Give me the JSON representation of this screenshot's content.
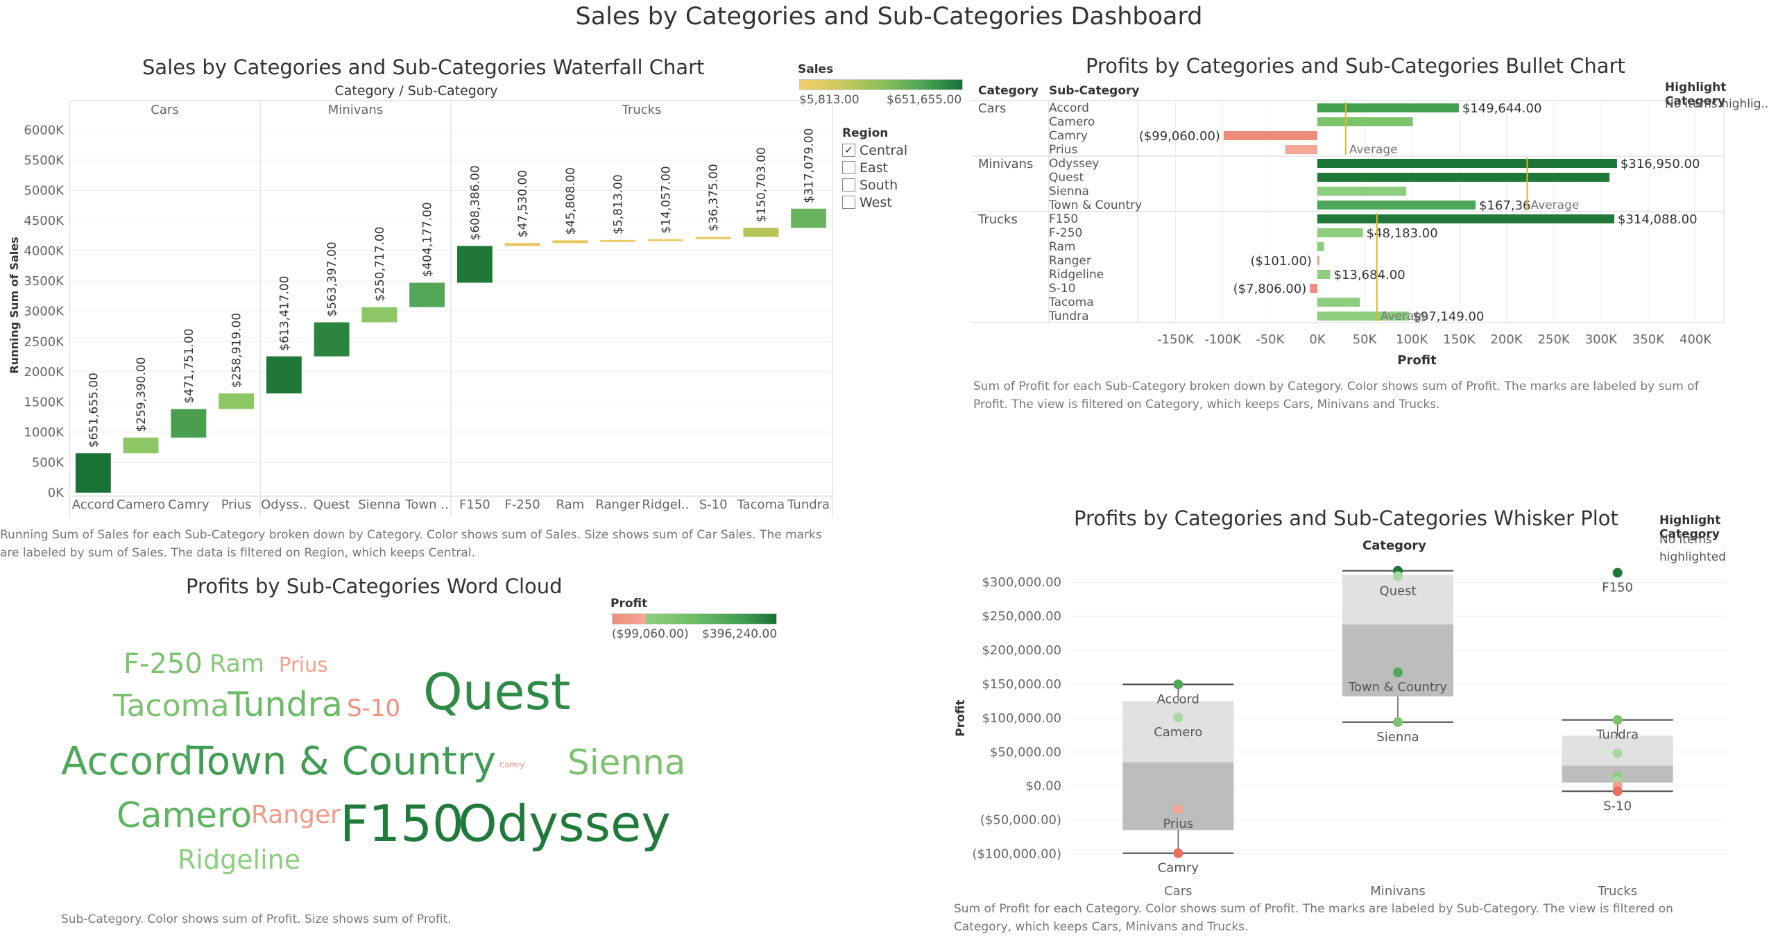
{
  "dashboard_title": "Sales by Categories and Sub-Categories Dashboard",
  "waterfall": {
    "title": "Sales by Categories and Sub-Categories Waterfall Chart",
    "header": "Category  /  Sub-Category",
    "ylabel": "Running Sum of Sales",
    "color_legend": {
      "title": "Sales",
      "min": "$5,813.00",
      "max": "$651,655.00"
    },
    "region_filter": {
      "title": "Region",
      "items": [
        {
          "label": "Central",
          "checked": true
        },
        {
          "label": "East",
          "checked": false
        },
        {
          "label": "South",
          "checked": false
        },
        {
          "label": "West",
          "checked": false
        }
      ]
    },
    "caption_line1": "Running Sum of Sales for each Sub-Category broken down by Category.  Color shows sum of Sales.  Size shows sum of Car Sales.  The marks",
    "caption_line2": "are labeled by sum of Sales. The data is filtered on Region, which keeps Central."
  },
  "bullet": {
    "title": "Profits by Categories and Sub-Categories Bullet Chart",
    "col_category": "Category",
    "col_subcategory": "Sub-Category",
    "xlabel": "Profit",
    "highlight": {
      "title": "Highlight Category",
      "value": "No items highlig.."
    },
    "caption_line1": "Sum of Profit for each Sub-Category broken down by Category.  Color shows sum of Profit.  The marks are labeled by sum of",
    "caption_line2": "Profit. The view is filtered on Category, which keeps Cars, Minivans and Trucks."
  },
  "wordcloud": {
    "title": "Profits by Sub-Categories Word Cloud",
    "legend": {
      "title": "Profit",
      "min": "($99,060.00)",
      "max": "$396,240.00"
    },
    "caption": "Sub-Category.  Color shows sum of Profit.  Size shows sum of Profit.",
    "words": [
      {
        "text": "F-250",
        "color": "#7cc26e"
      },
      {
        "text": "Ram",
        "color": "#86c97a"
      },
      {
        "text": "Prius",
        "color": "#f4a08e"
      },
      {
        "text": "Tacoma",
        "color": "#7cc26e"
      },
      {
        "text": "Tundra",
        "color": "#6cb965"
      },
      {
        "text": "S-10",
        "color": "#f08f7c"
      },
      {
        "text": "Quest",
        "color": "#2e8b45"
      },
      {
        "text": "Accord",
        "color": "#4fa85a"
      },
      {
        "text": "Town & Country",
        "color": "#3f9c52"
      },
      {
        "text": "Camry",
        "color": "#ef8a78"
      },
      {
        "text": "Sienna",
        "color": "#7cc26e"
      },
      {
        "text": "Camero",
        "color": "#5db35f"
      },
      {
        "text": "Ranger",
        "color": "#f49a87"
      },
      {
        "text": "F150",
        "color": "#1f7a3b"
      },
      {
        "text": "Odyssey",
        "color": "#1f7a3b"
      },
      {
        "text": "Ridgeline",
        "color": "#8ccd7e"
      }
    ]
  },
  "whisker": {
    "title": "Profits by Categories and Sub-Categories Whisker Plot",
    "header": "Category",
    "ylabel": "Profit",
    "highlight": {
      "title": "Highlight Category",
      "value_line1": "No items",
      "value_line2": "highlighted"
    },
    "caption_line1": "Sum of Profit for each Category.  Color shows sum of Profit.  The marks are labeled by Sub-Category. The view is filtered on",
    "caption_line2": "Category, which keeps Cars, Minivans and Trucks."
  },
  "chart_data": [
    {
      "type": "bar",
      "id": "waterfall",
      "title": "Sales by Categories and Sub-Categories Waterfall Chart",
      "ylabel": "Running Sum of Sales",
      "ylim": [
        0,
        6200000
      ],
      "yticks": [
        0,
        500000,
        1000000,
        1500000,
        2000000,
        2500000,
        3000000,
        3500000,
        4000000,
        4500000,
        5000000,
        5500000,
        6000000
      ],
      "ytick_labels": [
        "0K",
        "500K",
        "1000K",
        "1500K",
        "2000K",
        "2500K",
        "3000K",
        "3500K",
        "4000K",
        "4500K",
        "5000K",
        "5500K",
        "6000K"
      ],
      "groups": [
        {
          "category": "Cars",
          "items": [
            {
              "sub": "Accord",
              "value": 651655,
              "label": "$651,655.00",
              "color": "#1a7135"
            },
            {
              "sub": "Camero",
              "value": 259390,
              "label": "$259,390.00",
              "color": "#8cc665"
            },
            {
              "sub": "Camry",
              "value": 471751,
              "label": "$471,751.00",
              "color": "#4a9e50"
            },
            {
              "sub": "Prius",
              "value": 258919,
              "label": "$258,919.00",
              "color": "#8cc665"
            }
          ]
        },
        {
          "category": "Minivans",
          "items": [
            {
              "sub": "Odyss..",
              "value": 613417,
              "label": "$613,417.00",
              "color": "#1f7838"
            },
            {
              "sub": "Quest",
              "value": 563397,
              "label": "$563,397.00",
              "color": "#2c853e"
            },
            {
              "sub": "Sienna",
              "value": 250717,
              "label": "$250,717.00",
              "color": "#8cc665"
            },
            {
              "sub": "Town ..",
              "value": 404177,
              "label": "$404,177.00",
              "color": "#56a65a"
            }
          ]
        },
        {
          "category": "Trucks",
          "items": [
            {
              "sub": "F150",
              "value": 608386,
              "label": "$608,386.00",
              "color": "#1f7838"
            },
            {
              "sub": "F-250",
              "value": 47530,
              "label": "$47,530.00",
              "color": "#e8c75c"
            },
            {
              "sub": "Ram",
              "value": 45808,
              "label": "$45,808.00",
              "color": "#e8c75c"
            },
            {
              "sub": "Ranger",
              "value": 5813,
              "label": "$5,813.00",
              "color": "#f0cc66"
            },
            {
              "sub": "Ridgel..",
              "value": 14057,
              "label": "$14,057.00",
              "color": "#eccb62"
            },
            {
              "sub": "S-10",
              "value": 36375,
              "label": "$36,375.00",
              "color": "#e3c75c"
            },
            {
              "sub": "Tacoma",
              "value": 150703,
              "label": "$150,703.00",
              "color": "#b7c456"
            },
            {
              "sub": "Tundra",
              "value": 317079,
              "label": "$317,079.00",
              "color": "#6ab35f"
            }
          ]
        }
      ]
    },
    {
      "type": "bar",
      "id": "bullet",
      "title": "Profits by Categories and Sub-Categories Bullet Chart",
      "xlabel": "Profit",
      "xlim": [
        -190000,
        430000
      ],
      "xticks": [
        -150000,
        -100000,
        -50000,
        0,
        50000,
        100000,
        150000,
        200000,
        250000,
        300000,
        350000,
        400000
      ],
      "xtick_labels": [
        "-150K",
        "-100K",
        "-50K",
        "0K",
        "50K",
        "100K",
        "150K",
        "200K",
        "250K",
        "300K",
        "350K",
        "400K"
      ],
      "reference_line": "Average",
      "groups": [
        {
          "category": "Cars",
          "average": 30000,
          "average_label": "Average",
          "items": [
            {
              "sub": "Accord",
              "value": 149644,
              "label": "$149,644.00",
              "color": "#43a04e"
            },
            {
              "sub": "Camero",
              "value": 101000,
              "label": "",
              "color": "#7cc46c"
            },
            {
              "sub": "Camry",
              "value": -99060,
              "label": "($99,060.00)",
              "color": "#f08c7c"
            },
            {
              "sub": "Prius",
              "value": -34000,
              "label": "",
              "color": "#f6a898"
            }
          ]
        },
        {
          "category": "Minivans",
          "average": 222000,
          "average_label": "Average",
          "items": [
            {
              "sub": "Odyssey",
              "value": 316950,
              "label": "$316,950.00",
              "color": "#1b7336"
            },
            {
              "sub": "Quest",
              "value": 309000,
              "label": "",
              "color": "#1f7738"
            },
            {
              "sub": "Sienna",
              "value": 94000,
              "label": "",
              "color": "#8ccd7e"
            },
            {
              "sub": "Town & Country",
              "value": 167360,
              "label": "$167,36",
              "color": "#4fa85a"
            }
          ]
        },
        {
          "category": "Trucks",
          "average": 63000,
          "average_label": "Average",
          "items": [
            {
              "sub": "F150",
              "value": 314088,
              "label": "$314,088.00",
              "color": "#1f7738"
            },
            {
              "sub": "F-250",
              "value": 48183,
              "label": "$48,183.00",
              "color": "#8ccd7e"
            },
            {
              "sub": "Ram",
              "value": 7000,
              "label": "",
              "color": "#8ccd7e"
            },
            {
              "sub": "Ranger",
              "value": -101,
              "label": "($101.00)",
              "color": "#f4a090"
            },
            {
              "sub": "Ridgeline",
              "value": 13684,
              "label": "$13,684.00",
              "color": "#8ccd7e"
            },
            {
              "sub": "S-10",
              "value": -7806,
              "label": "($7,806.00)",
              "color": "#f08c7c"
            },
            {
              "sub": "Tacoma",
              "value": 45000,
              "label": "",
              "color": "#8ccd7e"
            },
            {
              "sub": "Tundra",
              "value": 97149,
              "label": "$97,149.00",
              "color": "#8ccd7e"
            }
          ]
        }
      ]
    },
    {
      "type": "scatter",
      "id": "whisker",
      "title": "Profits by Categories and Sub-Categories Whisker Plot",
      "xlabel": "Category",
      "ylabel": "Profit",
      "ylim": [
        -125000,
        335000
      ],
      "yticks": [
        -100000,
        -50000,
        0,
        50000,
        100000,
        150000,
        200000,
        250000,
        300000
      ],
      "ytick_labels": [
        "($100,000.00)",
        "($50,000.00)",
        "$0.00",
        "$50,000.00",
        "$100,000.00",
        "$150,000.00",
        "$200,000.00",
        "$250,000.00",
        "$300,000.00"
      ],
      "categories": [
        {
          "name": "Cars",
          "box": {
            "whisker_low": -99060,
            "q1": -65000,
            "median": 35000,
            "q3": 125000,
            "whisker_high": 149644
          },
          "points": [
            {
              "value": 149644,
              "color": "#4fa85a",
              "label": "Accord"
            },
            {
              "value": 101000,
              "color": "#a9d7a0",
              "label": "Camero"
            },
            {
              "value": -34000,
              "color": "#f2a595",
              "label": "Prius"
            },
            {
              "value": -99060,
              "color": "#e8705c",
              "label": "Camry"
            }
          ]
        },
        {
          "name": "Minivans",
          "box": {
            "whisker_low": 94000,
            "q1": 132000,
            "median": 238000,
            "q3": 311000,
            "whisker_high": 316950
          },
          "points": [
            {
              "value": 316950,
              "color": "#1f7738",
              "label": ""
            },
            {
              "value": 309000,
              "color": "#a9d7a0",
              "label": "Quest"
            },
            {
              "value": 167360,
              "color": "#4fa85a",
              "label": "Town & Country"
            },
            {
              "value": 94000,
              "color": "#7cc46c",
              "label": "Sienna"
            }
          ]
        },
        {
          "name": "Trucks",
          "box": {
            "whisker_low": -7806,
            "q1": 5000,
            "median": 30000,
            "q3": 74000,
            "whisker_high": 97149
          },
          "points": [
            {
              "value": 314088,
              "color": "#1f7738",
              "label": "F150"
            },
            {
              "value": 97149,
              "color": "#7cc46c",
              "label": "Tundra"
            },
            {
              "value": 48183,
              "color": "#a9d7a0",
              "label": ""
            },
            {
              "value": 13684,
              "color": "#8ccd7e",
              "label": ""
            },
            {
              "value": 7000,
              "color": "#a9d7a0",
              "label": ""
            },
            {
              "value": -101,
              "color": "#f4a090",
              "label": ""
            },
            {
              "value": -7806,
              "color": "#e8705c",
              "label": "S-10"
            }
          ]
        }
      ]
    }
  ]
}
